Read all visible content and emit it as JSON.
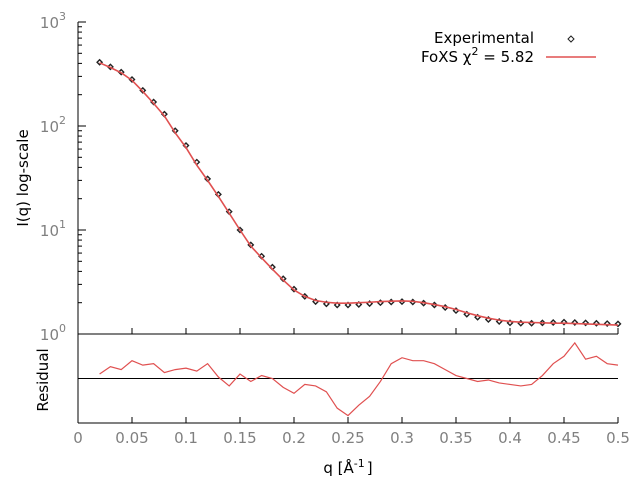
{
  "chart_data": {
    "type": "line",
    "colors": {
      "experimental": "#222222",
      "fit": "#e05050",
      "axis": "#000000",
      "tick_label": "#808080",
      "zero_line": "#000000"
    },
    "legend": {
      "placement": "top-right",
      "entries": [
        {
          "text": "Experimental",
          "marker": "diamond"
        },
        {
          "text": "FoXS χ² = 5.82",
          "prefix": "FoXS χ",
          "sup": "2",
          "suffix": " = 5.82",
          "marker": "line"
        }
      ]
    },
    "top_panel": {
      "ylabel": "I(q) log-scale",
      "yscale": "log",
      "ylim": [
        1,
        1000
      ],
      "yticks": [
        {
          "base": "10",
          "exp": "0"
        },
        {
          "base": "10",
          "exp": "1"
        },
        {
          "base": "10",
          "exp": "2"
        },
        {
          "base": "10",
          "exp": "3"
        }
      ],
      "series": [
        {
          "name": "Experimental",
          "style": "points",
          "x": [
            0.02,
            0.03,
            0.04,
            0.05,
            0.06,
            0.07,
            0.08,
            0.09,
            0.1,
            0.11,
            0.12,
            0.13,
            0.14,
            0.15,
            0.16,
            0.17,
            0.18,
            0.19,
            0.2,
            0.21,
            0.22,
            0.23,
            0.24,
            0.25,
            0.26,
            0.27,
            0.28,
            0.29,
            0.3,
            0.31,
            0.32,
            0.33,
            0.34,
            0.35,
            0.36,
            0.37,
            0.38,
            0.39,
            0.4,
            0.41,
            0.42,
            0.43,
            0.44,
            0.45,
            0.46,
            0.47,
            0.48,
            0.49,
            0.5
          ],
          "y": [
            410,
            370,
            330,
            280,
            220,
            170,
            130,
            90,
            65,
            45,
            31,
            22,
            15,
            10,
            7.2,
            5.6,
            4.4,
            3.4,
            2.7,
            2.3,
            2.05,
            1.95,
            1.9,
            1.9,
            1.92,
            1.96,
            2.0,
            2.03,
            2.05,
            2.03,
            1.98,
            1.9,
            1.8,
            1.68,
            1.55,
            1.45,
            1.38,
            1.32,
            1.28,
            1.27,
            1.27,
            1.28,
            1.29,
            1.3,
            1.29,
            1.28,
            1.27,
            1.26,
            1.25
          ]
        },
        {
          "name": "FoXS χ² = 5.82",
          "style": "line",
          "x": [
            0.02,
            0.03,
            0.04,
            0.05,
            0.06,
            0.07,
            0.08,
            0.09,
            0.1,
            0.11,
            0.12,
            0.13,
            0.14,
            0.15,
            0.16,
            0.17,
            0.18,
            0.19,
            0.2,
            0.21,
            0.22,
            0.23,
            0.24,
            0.25,
            0.26,
            0.27,
            0.28,
            0.29,
            0.3,
            0.31,
            0.32,
            0.33,
            0.34,
            0.35,
            0.36,
            0.37,
            0.38,
            0.39,
            0.4,
            0.41,
            0.42,
            0.43,
            0.44,
            0.45,
            0.46,
            0.47,
            0.48,
            0.49,
            0.5
          ],
          "y": [
            405,
            365,
            325,
            275,
            215,
            165,
            125,
            86,
            62,
            42,
            30,
            21,
            14.5,
            10.0,
            7.0,
            5.4,
            4.2,
            3.3,
            2.65,
            2.3,
            2.1,
            2.02,
            1.98,
            1.98,
            2.0,
            2.02,
            2.05,
            2.07,
            2.08,
            2.06,
            2.0,
            1.92,
            1.83,
            1.72,
            1.6,
            1.5,
            1.42,
            1.36,
            1.32,
            1.3,
            1.29,
            1.28,
            1.27,
            1.27,
            1.26,
            1.25,
            1.24,
            1.23,
            1.22
          ]
        }
      ]
    },
    "residual_panel": {
      "ylabel": "Residual",
      "series": {
        "name": "Residual",
        "x": [
          0.02,
          0.03,
          0.04,
          0.05,
          0.06,
          0.07,
          0.08,
          0.09,
          0.1,
          0.11,
          0.12,
          0.13,
          0.14,
          0.15,
          0.16,
          0.17,
          0.18,
          0.19,
          0.2,
          0.21,
          0.22,
          0.23,
          0.24,
          0.25,
          0.26,
          0.27,
          0.28,
          0.29,
          0.3,
          0.31,
          0.32,
          0.33,
          0.34,
          0.35,
          0.36,
          0.37,
          0.38,
          0.39,
          0.4,
          0.41,
          0.42,
          0.43,
          0.44,
          0.45,
          0.46,
          0.47,
          0.48,
          0.49,
          0.5
        ],
        "y": [
          0.3,
          0.8,
          0.6,
          1.2,
          0.9,
          1.0,
          0.4,
          0.6,
          0.7,
          0.5,
          1.0,
          0.1,
          -0.5,
          0.3,
          -0.2,
          0.2,
          0.0,
          -0.6,
          -1.0,
          -0.4,
          -0.5,
          -0.9,
          -2.0,
          -2.5,
          -1.8,
          -1.2,
          -0.2,
          1.0,
          1.4,
          1.2,
          1.2,
          1.0,
          0.6,
          0.2,
          0.0,
          -0.2,
          -0.1,
          -0.3,
          -0.4,
          -0.5,
          -0.4,
          0.2,
          1.0,
          1.5,
          2.4,
          1.3,
          1.5,
          1.0,
          0.9
        ],
        "ylim": [
          -3,
          3
        ]
      }
    },
    "xaxis": {
      "xlabel_main": "q [Å",
      "xlabel_sup": "-1",
      "xlabel_end": "]",
      "xlim": [
        0,
        0.5
      ],
      "xticks": [
        "0",
        "0.05",
        "0.1",
        "0.15",
        "0.2",
        "0.25",
        "0.3",
        "0.35",
        "0.4",
        "0.45",
        "0.5"
      ]
    }
  }
}
